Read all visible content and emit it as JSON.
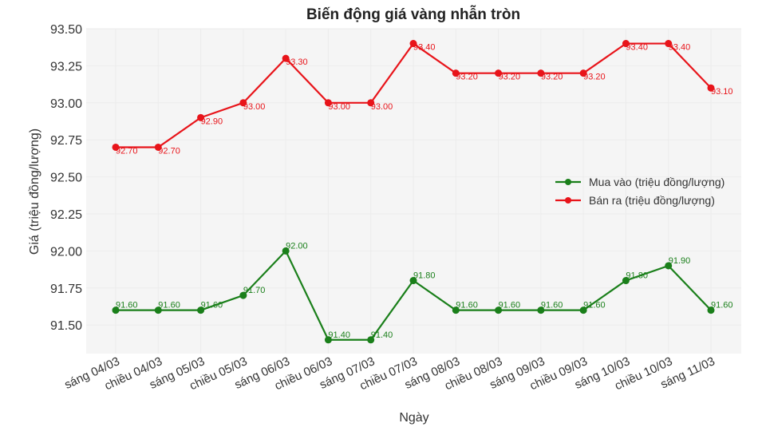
{
  "chart_data": {
    "type": "line",
    "title": "Biến động giá vàng nhẫn tròn",
    "xlabel": "Ngày",
    "ylabel": "Giá (triệu đồng/lượng)",
    "ylim": [
      91.3,
      93.5
    ],
    "yticks": [
      "93.50",
      "93.25",
      "93.00",
      "92.75",
      "92.50",
      "92.25",
      "92.00",
      "91.75",
      "91.50"
    ],
    "grid": true,
    "legend_position": "center right",
    "categories": [
      "sáng 04/03",
      "chiều 04/03",
      "sáng 05/03",
      "chiều 05/03",
      "sáng 06/03",
      "chiều 06/03",
      "sáng 07/03",
      "chiều 07/03",
      "sáng 08/03",
      "chiều 08/03",
      "sáng 09/03",
      "chiều 09/03",
      "sáng 10/03",
      "chiều 10/03",
      "sáng 11/03"
    ],
    "series": [
      {
        "name": "Mua vào (triệu đồng/lượng)",
        "color": "#1a7f1a",
        "values": [
          91.6,
          91.6,
          91.6,
          91.7,
          92.0,
          91.4,
          91.4,
          91.8,
          91.6,
          91.6,
          91.6,
          91.6,
          91.8,
          91.9,
          91.6
        ]
      },
      {
        "name": "Bán ra (triệu đồng/lượng)",
        "color": "#e8141a",
        "values": [
          92.7,
          92.7,
          92.9,
          93.0,
          93.3,
          93.0,
          93.0,
          93.4,
          93.2,
          93.2,
          93.2,
          93.2,
          93.4,
          93.4,
          93.1
        ]
      }
    ]
  }
}
